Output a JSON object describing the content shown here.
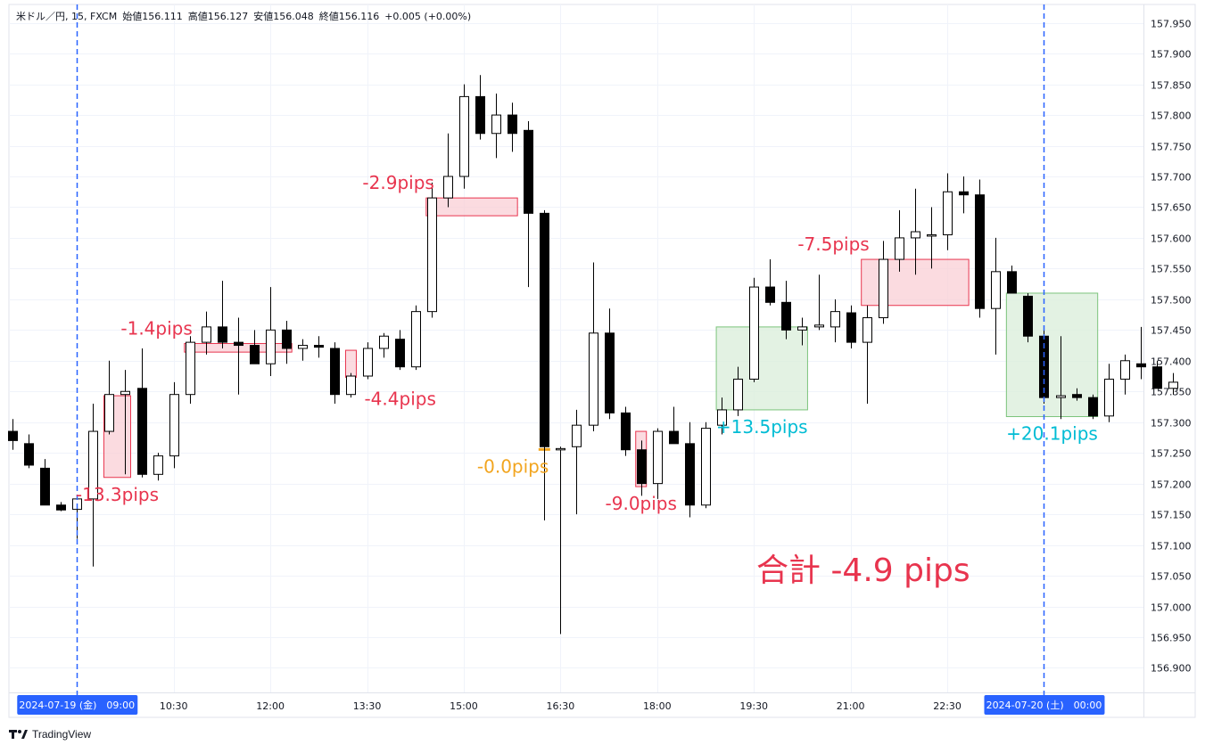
{
  "header": {
    "symbol": "米ドル／円, 15, FXCM",
    "open": "始値156.111",
    "high": "高値156.127",
    "low": "安値156.048",
    "close": "終値156.116",
    "change": "+0.005 (+0.00%)"
  },
  "footer": {
    "brand": "TradingView",
    "logo_icon": "tradingview-logo-icon"
  },
  "colors": {
    "bear": "#000000",
    "bull": "#ffffff",
    "wick": "#000000",
    "loss_text": "#e8344e",
    "loss_fill": "#f9cfd5",
    "loss_stroke": "#e8344e",
    "gain_text": "#00bcd4",
    "gain_fill": "#dcefdc",
    "gain_stroke": "#7cc47c",
    "neutral_text": "#f2a51f",
    "session_line": "#2962ff",
    "time_badge": "#2962ff"
  },
  "chart_data": {
    "type": "candlestick",
    "interval_minutes": 15,
    "y_axis": {
      "range": [
        156.86,
        157.98
      ],
      "ticks": [
        "157.950",
        "157.900",
        "157.850",
        "157.800",
        "157.750",
        "157.700",
        "157.650",
        "157.600",
        "157.550",
        "157.500",
        "157.450",
        "157.400",
        "157.350",
        "157.300",
        "157.250",
        "157.200",
        "157.150",
        "157.100",
        "157.050",
        "157.000",
        "156.950",
        "156.900"
      ]
    },
    "x_axis": {
      "start": "2024-07-19 08:00",
      "labels": [
        {
          "time": "10:30",
          "label": "10:30"
        },
        {
          "time": "12:00",
          "label": "12:00"
        },
        {
          "time": "13:30",
          "label": "13:30"
        },
        {
          "time": "15:00",
          "label": "15:00"
        },
        {
          "time": "16:30",
          "label": "16:30"
        },
        {
          "time": "18:00",
          "label": "18:00"
        },
        {
          "time": "19:30",
          "label": "19:30"
        },
        {
          "time": "21:00",
          "label": "21:00"
        },
        {
          "time": "22:30",
          "label": "22:30"
        }
      ],
      "session_markers": [
        {
          "time": "2024-07-19 09:00",
          "label": "2024-07-19 (金)　09:00"
        },
        {
          "time": "2024-07-20 00:00",
          "label": "2024-07-20 (土)　00:00"
        }
      ]
    },
    "candles": [
      {
        "t": "08:00",
        "o": 157.285,
        "h": 157.305,
        "l": 157.255,
        "c": 157.27
      },
      {
        "t": "08:15",
        "o": 157.265,
        "h": 157.28,
        "l": 157.225,
        "c": 157.23
      },
      {
        "t": "08:30",
        "o": 157.225,
        "h": 157.24,
        "l": 157.165,
        "c": 157.165
      },
      {
        "t": "08:45",
        "o": 157.165,
        "h": 157.17,
        "l": 157.155,
        "c": 157.157
      },
      {
        "t": "09:00",
        "o": 157.158,
        "h": 157.18,
        "l": 157.11,
        "c": 157.175
      },
      {
        "t": "09:15",
        "o": 157.175,
        "h": 157.33,
        "l": 157.065,
        "c": 157.285
      },
      {
        "t": "09:30",
        "o": 157.285,
        "h": 157.4,
        "l": 157.28,
        "c": 157.345
      },
      {
        "t": "09:45",
        "o": 157.345,
        "h": 157.385,
        "l": 157.215,
        "c": 157.35
      },
      {
        "t": "10:00",
        "o": 157.355,
        "h": 157.42,
        "l": 157.21,
        "c": 157.215
      },
      {
        "t": "10:15",
        "o": 157.215,
        "h": 157.25,
        "l": 157.205,
        "c": 157.245
      },
      {
        "t": "10:30",
        "o": 157.245,
        "h": 157.365,
        "l": 157.225,
        "c": 157.345
      },
      {
        "t": "10:45",
        "o": 157.345,
        "h": 157.44,
        "l": 157.33,
        "c": 157.43
      },
      {
        "t": "11:00",
        "o": 157.43,
        "h": 157.48,
        "l": 157.41,
        "c": 157.455
      },
      {
        "t": "11:15",
        "o": 157.455,
        "h": 157.53,
        "l": 157.42,
        "c": 157.43
      },
      {
        "t": "11:30",
        "o": 157.43,
        "h": 157.47,
        "l": 157.345,
        "c": 157.425
      },
      {
        "t": "11:45",
        "o": 157.425,
        "h": 157.45,
        "l": 157.395,
        "c": 157.395
      },
      {
        "t": "12:00",
        "o": 157.395,
        "h": 157.52,
        "l": 157.375,
        "c": 157.45
      },
      {
        "t": "12:15",
        "o": 157.45,
        "h": 157.465,
        "l": 157.395,
        "c": 157.42
      },
      {
        "t": "12:30",
        "o": 157.42,
        "h": 157.435,
        "l": 157.4,
        "c": 157.425
      },
      {
        "t": "12:45",
        "o": 157.425,
        "h": 157.44,
        "l": 157.405,
        "c": 157.422
      },
      {
        "t": "13:00",
        "o": 157.42,
        "h": 157.43,
        "l": 157.33,
        "c": 157.345
      },
      {
        "t": "13:15",
        "o": 157.345,
        "h": 157.38,
        "l": 157.34,
        "c": 157.375
      },
      {
        "t": "13:30",
        "o": 157.375,
        "h": 157.43,
        "l": 157.37,
        "c": 157.42
      },
      {
        "t": "13:45",
        "o": 157.42,
        "h": 157.445,
        "l": 157.405,
        "c": 157.44
      },
      {
        "t": "14:00",
        "o": 157.435,
        "h": 157.45,
        "l": 157.385,
        "c": 157.39
      },
      {
        "t": "14:15",
        "o": 157.39,
        "h": 157.49,
        "l": 157.385,
        "c": 157.48
      },
      {
        "t": "14:30",
        "o": 157.48,
        "h": 157.69,
        "l": 157.47,
        "c": 157.665
      },
      {
        "t": "14:45",
        "o": 157.665,
        "h": 157.77,
        "l": 157.65,
        "c": 157.7
      },
      {
        "t": "15:00",
        "o": 157.7,
        "h": 157.85,
        "l": 157.68,
        "c": 157.83
      },
      {
        "t": "15:15",
        "o": 157.83,
        "h": 157.865,
        "l": 157.76,
        "c": 157.77
      },
      {
        "t": "15:30",
        "o": 157.77,
        "h": 157.835,
        "l": 157.73,
        "c": 157.8
      },
      {
        "t": "15:45",
        "o": 157.8,
        "h": 157.82,
        "l": 157.74,
        "c": 157.77
      },
      {
        "t": "16:00",
        "o": 157.775,
        "h": 157.79,
        "l": 157.52,
        "c": 157.64
      },
      {
        "t": "16:15",
        "o": 157.64,
        "h": 157.645,
        "l": 157.14,
        "c": 157.26
      },
      {
        "t": "16:30",
        "o": 157.255,
        "h": 157.26,
        "l": 156.955,
        "c": 157.257
      },
      {
        "t": "16:45",
        "o": 157.26,
        "h": 157.32,
        "l": 157.15,
        "c": 157.295
      },
      {
        "t": "17:00",
        "o": 157.295,
        "h": 157.56,
        "l": 157.285,
        "c": 157.445
      },
      {
        "t": "17:15",
        "o": 157.445,
        "h": 157.485,
        "l": 157.305,
        "c": 157.315
      },
      {
        "t": "17:30",
        "o": 157.315,
        "h": 157.325,
        "l": 157.245,
        "c": 157.255
      },
      {
        "t": "17:45",
        "o": 157.255,
        "h": 157.27,
        "l": 157.18,
        "c": 157.2
      },
      {
        "t": "18:00",
        "o": 157.2,
        "h": 157.29,
        "l": 157.175,
        "c": 157.285
      },
      {
        "t": "18:15",
        "o": 157.285,
        "h": 157.325,
        "l": 157.265,
        "c": 157.265
      },
      {
        "t": "18:30",
        "o": 157.265,
        "h": 157.3,
        "l": 157.145,
        "c": 157.165
      },
      {
        "t": "18:45",
        "o": 157.165,
        "h": 157.3,
        "l": 157.16,
        "c": 157.29
      },
      {
        "t": "19:00",
        "o": 157.295,
        "h": 157.34,
        "l": 157.28,
        "c": 157.32
      },
      {
        "t": "19:15",
        "o": 157.32,
        "h": 157.39,
        "l": 157.31,
        "c": 157.37
      },
      {
        "t": "19:30",
        "o": 157.37,
        "h": 157.535,
        "l": 157.365,
        "c": 157.52
      },
      {
        "t": "19:45",
        "o": 157.52,
        "h": 157.565,
        "l": 157.49,
        "c": 157.495
      },
      {
        "t": "20:00",
        "o": 157.495,
        "h": 157.53,
        "l": 157.435,
        "c": 157.45
      },
      {
        "t": "20:15",
        "o": 157.45,
        "h": 157.47,
        "l": 157.425,
        "c": 157.455
      },
      {
        "t": "20:30",
        "o": 157.455,
        "h": 157.54,
        "l": 157.45,
        "c": 157.458
      },
      {
        "t": "20:45",
        "o": 157.455,
        "h": 157.5,
        "l": 157.43,
        "c": 157.48
      },
      {
        "t": "21:00",
        "o": 157.478,
        "h": 157.49,
        "l": 157.42,
        "c": 157.43
      },
      {
        "t": "21:15",
        "o": 157.43,
        "h": 157.49,
        "l": 157.33,
        "c": 157.47
      },
      {
        "t": "21:30",
        "o": 157.47,
        "h": 157.595,
        "l": 157.46,
        "c": 157.565
      },
      {
        "t": "21:45",
        "o": 157.565,
        "h": 157.645,
        "l": 157.545,
        "c": 157.6
      },
      {
        "t": "22:00",
        "o": 157.6,
        "h": 157.68,
        "l": 157.54,
        "c": 157.61
      },
      {
        "t": "22:15",
        "o": 157.605,
        "h": 157.65,
        "l": 157.55,
        "c": 157.605
      },
      {
        "t": "22:30",
        "o": 157.605,
        "h": 157.705,
        "l": 157.58,
        "c": 157.675
      },
      {
        "t": "22:45",
        "o": 157.675,
        "h": 157.7,
        "l": 157.64,
        "c": 157.67
      },
      {
        "t": "23:00",
        "o": 157.67,
        "h": 157.695,
        "l": 157.47,
        "c": 157.485
      },
      {
        "t": "23:15",
        "o": 157.485,
        "h": 157.6,
        "l": 157.41,
        "c": 157.545
      },
      {
        "t": "23:30",
        "o": 157.545,
        "h": 157.555,
        "l": 157.51,
        "c": 157.51
      },
      {
        "t": "23:45",
        "o": 157.505,
        "h": 157.51,
        "l": 157.43,
        "c": 157.44
      },
      {
        "t": "00:00",
        "o": 157.44,
        "h": 157.45,
        "l": 157.33,
        "c": 157.34
      },
      {
        "t": "00:15",
        "o": 157.34,
        "h": 157.44,
        "l": 157.305,
        "c": 157.343
      },
      {
        "t": "00:30",
        "o": 157.345,
        "h": 157.355,
        "l": 157.335,
        "c": 157.34
      },
      {
        "t": "00:45",
        "o": 157.34,
        "h": 157.345,
        "l": 157.305,
        "c": 157.31
      },
      {
        "t": "01:00",
        "o": 157.31,
        "h": 157.395,
        "l": 157.3,
        "c": 157.37
      },
      {
        "t": "01:15",
        "o": 157.37,
        "h": 157.41,
        "l": 157.345,
        "c": 157.4
      },
      {
        "t": "01:30",
        "o": 157.395,
        "h": 157.455,
        "l": 157.37,
        "c": 157.39
      },
      {
        "t": "01:45",
        "o": 157.39,
        "h": 157.4,
        "l": 157.355,
        "c": 157.355
      },
      {
        "t": "02:00",
        "o": 157.355,
        "h": 157.38,
        "l": 157.345,
        "c": 157.365
      }
    ],
    "trades": [
      {
        "from": "09:30",
        "to": "09:45",
        "entry": 157.343,
        "exit": 157.21,
        "result": "loss",
        "label": "-13.3pips",
        "label_pos": "below"
      },
      {
        "from": "10:45",
        "to": "12:15",
        "entry": 157.428,
        "exit": 157.414,
        "result": "loss",
        "label": "-1.4pips",
        "label_pos": "above-left"
      },
      {
        "from": "13:15",
        "to": "13:15",
        "entry": 157.373,
        "exit": 157.417,
        "result": "loss",
        "label": "-4.4pips",
        "label_pos": "below-right"
      },
      {
        "from": "14:30",
        "to": "15:45",
        "entry": 157.665,
        "exit": 157.636,
        "result": "loss",
        "label": "-2.9pips",
        "label_pos": "above-left"
      },
      {
        "from": "16:15",
        "to": "16:15",
        "entry": 157.257,
        "exit": 157.257,
        "result": "even",
        "label": "-0.0pips",
        "label_pos": "below-left"
      },
      {
        "from": "17:45",
        "to": "17:45",
        "entry": 157.285,
        "exit": 157.195,
        "result": "loss",
        "label": "-9.0pips",
        "label_pos": "below"
      },
      {
        "from": "19:00",
        "to": "20:15",
        "entry": 157.32,
        "exit": 157.455,
        "result": "gain",
        "label": "+13.5pips",
        "label_pos": "below"
      },
      {
        "from": "21:15",
        "to": "22:45",
        "entry": 157.565,
        "exit": 157.49,
        "result": "loss",
        "label": "-7.5pips",
        "label_pos": "above-left"
      },
      {
        "from": "23:30",
        "to": "00:45",
        "entry": 157.51,
        "exit": 157.309,
        "result": "gain",
        "label": "+20.1pips",
        "label_pos": "below"
      }
    ],
    "total": "合計 -4.9 pips"
  }
}
